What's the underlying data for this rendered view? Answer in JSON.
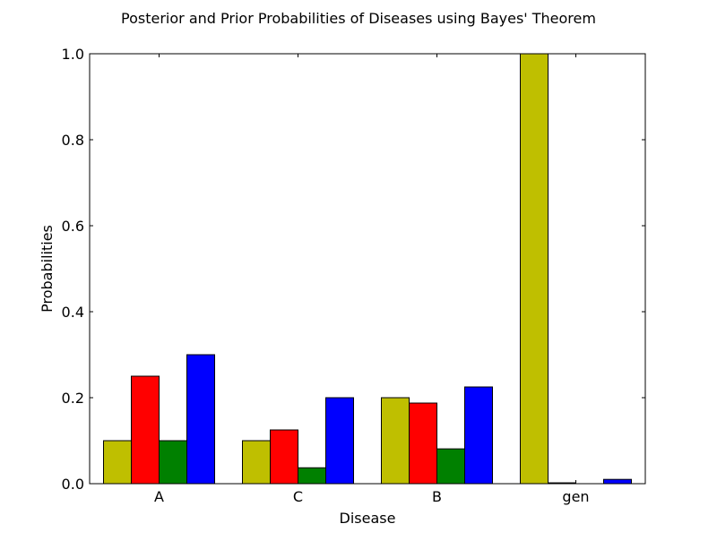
{
  "chart_data": {
    "type": "bar",
    "title": "Posterior and Prior Probabilities of Diseases using Bayes' Theorem",
    "xlabel": "Disease",
    "ylabel": "Probabilities",
    "categories": [
      "A",
      "C",
      "B",
      "gen"
    ],
    "ylim": [
      0,
      1.0
    ],
    "yticks": [
      "0.0",
      "0.2",
      "0.4",
      "0.6",
      "0.8",
      "1.0"
    ],
    "grid": false,
    "legend": "none",
    "series": [
      {
        "color": "#bfbf00",
        "values": [
          0.1,
          0.1,
          0.2,
          1.0
        ]
      },
      {
        "color": "#ff0000",
        "values": [
          0.25,
          0.125,
          0.1875,
          0.002
        ]
      },
      {
        "color": "#008000",
        "values": [
          0.1,
          0.037,
          0.081,
          0.0
        ]
      },
      {
        "color": "#0000ff",
        "values": [
          0.3,
          0.2,
          0.225,
          0.01
        ]
      }
    ]
  }
}
